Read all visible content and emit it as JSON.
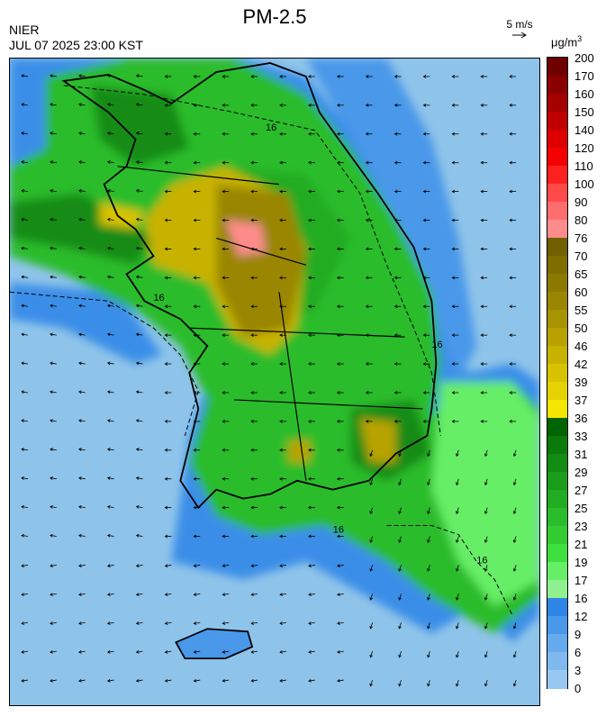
{
  "title": "PM-2.5",
  "agency": "NIER",
  "datetime": "JUL 07 2025 23:00 KST",
  "wind_reference": {
    "label": "5 m/s",
    "arrow_icon": "wind-arrow-icon"
  },
  "unit": {
    "base": "μg/m",
    "exponent": "3"
  },
  "contour_label": "16",
  "colorbar": {
    "levels": [
      "200",
      "170",
      "160",
      "150",
      "140",
      "120",
      "110",
      "100",
      "90",
      "80",
      "76",
      "70",
      "65",
      "60",
      "55",
      "50",
      "46",
      "42",
      "39",
      "37",
      "36",
      "33",
      "31",
      "29",
      "27",
      "25",
      "23",
      "21",
      "19",
      "17",
      "16",
      "12",
      "9",
      "6",
      "3",
      "0"
    ],
    "colors": [
      "#6e0000",
      "#8a0000",
      "#a40000",
      "#c00000",
      "#dc0000",
      "#f50000",
      "#ff2020",
      "#ff4a4a",
      "#ff6e6e",
      "#ff8c8c",
      "#706000",
      "#7f6d00",
      "#8c7a00",
      "#9a8600",
      "#a89300",
      "#b8a200",
      "#c8b200",
      "#d8c200",
      "#e6d200",
      "#f4e600",
      "#006400",
      "#0a7a0a",
      "#138c13",
      "#1b9c1b",
      "#22ac22",
      "#2abc2a",
      "#33cc33",
      "#3ee03e",
      "#66ee66",
      "#90f090",
      "#2e86e6",
      "#4a98ea",
      "#66aaee",
      "#7fb9f0",
      "#98c8f2"
    ]
  },
  "colors": {
    "sea_background": "#8fc4ea",
    "coastline": "#000000",
    "contour": "#000000"
  }
}
